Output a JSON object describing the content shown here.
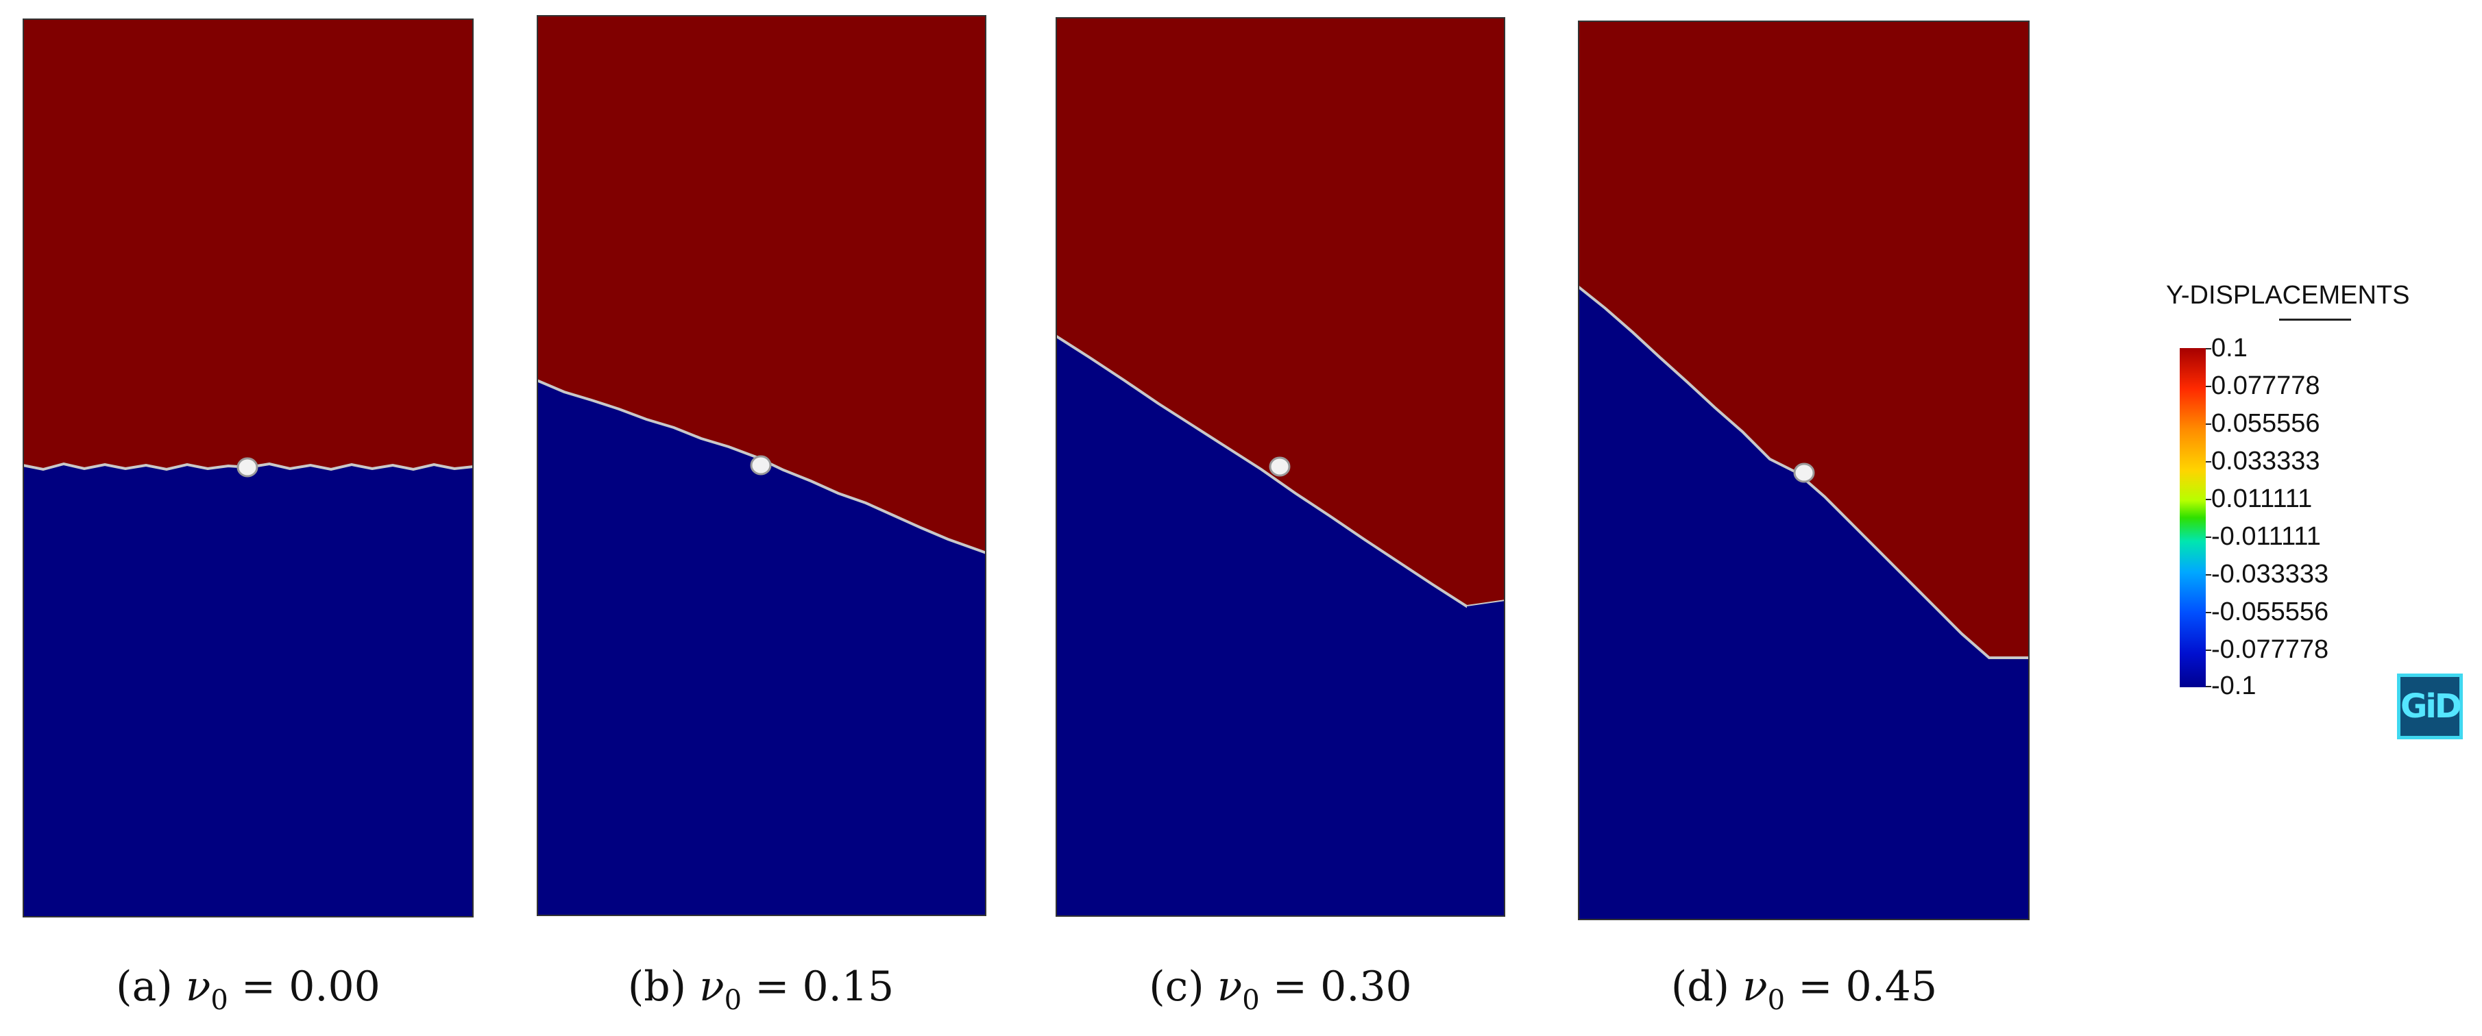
{
  "figure": {
    "colors": {
      "upper_region": "#800000",
      "lower_region": "#000080",
      "interface_line": "#c9c9c9",
      "inclusion": "#f2f2f2"
    },
    "panels": [
      {
        "label": "(a)",
        "symbol": "ν",
        "subscript": "0",
        "equals": "=",
        "value": "0.00"
      },
      {
        "label": "(b)",
        "symbol": "ν",
        "subscript": "0",
        "equals": "=",
        "value": "0.15"
      },
      {
        "label": "(c)",
        "symbol": "ν",
        "subscript": "0",
        "equals": "=",
        "value": "0.30"
      },
      {
        "label": "(d)",
        "symbol": "ν",
        "subscript": "0",
        "equals": "=",
        "value": "0.45"
      }
    ]
  },
  "legend": {
    "title": "Y-DISPLACEMENTS",
    "ticks": [
      "0.1",
      "0.077778",
      "0.055556",
      "0.033333",
      "0.011111",
      "-0.011111",
      "-0.033333",
      "-0.055556",
      "-0.077778",
      "-0.1"
    ]
  },
  "logo": {
    "text": "GiD"
  }
}
